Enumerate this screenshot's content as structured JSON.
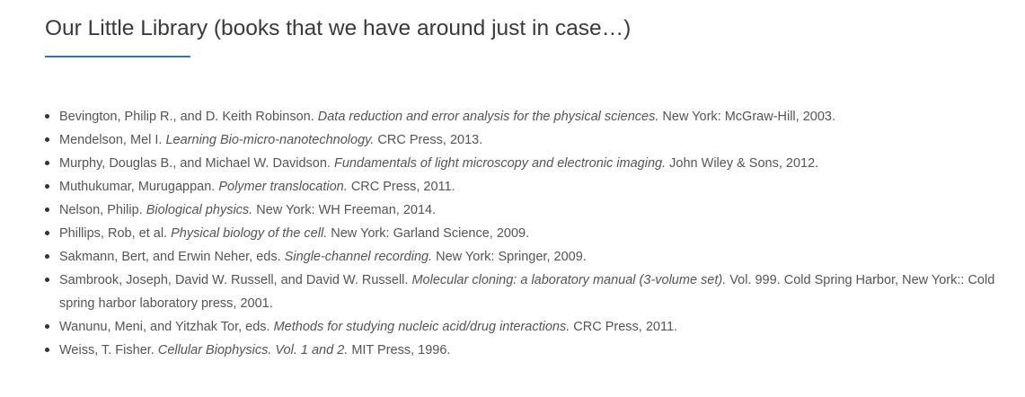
{
  "heading": {
    "title": "Our Little Library (books that we have around just in case…)"
  },
  "books": [
    {
      "authors": "Bevington, Philip R., and D. Keith Robinson.",
      "title": "Data reduction and error analysis for the physical sciences.",
      "publication": "New York: McGraw-Hill, 2003."
    },
    {
      "authors": "Mendelson, Mel I.",
      "title": "Learning Bio-micro-nanotechnology.",
      "publication": "CRC Press, 2013."
    },
    {
      "authors": "Murphy, Douglas B., and Michael W. Davidson.",
      "title": "Fundamentals of light microscopy and electronic imaging.",
      "publication": "John Wiley & Sons, 2012."
    },
    {
      "authors": "Muthukumar, Murugappan.",
      "title": "Polymer translocation.",
      "publication": "CRC Press, 2011."
    },
    {
      "authors": "Nelson, Philip.",
      "title": "Biological physics.",
      "publication": "New York: WH Freeman, 2014."
    },
    {
      "authors": "Phillips, Rob, et al.",
      "title": "Physical biology of the cell.",
      "publication": "New York: Garland Science, 2009."
    },
    {
      "authors": "Sakmann, Bert, and Erwin Neher, eds.",
      "title": "Single-channel recording.",
      "publication": "New York: Springer, 2009."
    },
    {
      "authors": "Sambrook, Joseph, David W. Russell, and David W. Russell.",
      "title": "Molecular cloning: a laboratory manual (3-volume set).",
      "publication": "Vol. 999. Cold Spring Harbor, New York:: Cold spring harbor laboratory press, 2001."
    },
    {
      "authors": "Wanunu, Meni, and Yitzhak Tor, eds.",
      "title": "Methods for studying nucleic acid/drug interactions.",
      "publication": "CRC Press, 2011."
    },
    {
      "authors": "Weiss, T. Fisher.",
      "title": "Cellular Biophysics. Vol. 1 and 2.",
      "publication": "MIT Press, 1996."
    }
  ],
  "colors": {
    "accent_underline": "#2a78b4",
    "text": "#555555",
    "heading": "#3a3a3a"
  }
}
